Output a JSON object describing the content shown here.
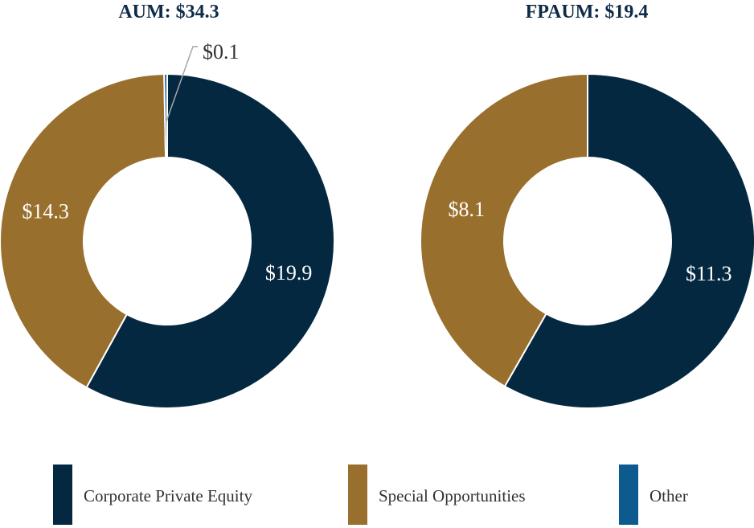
{
  "colors": {
    "corporate_private_equity": "#052841",
    "special_opportunities": "#996f2d",
    "other": "#0d5a8e",
    "title": "#0e2b47"
  },
  "chart_data": [
    {
      "type": "pie",
      "variant": "donut",
      "title": "AUM: $34.3",
      "categories": [
        "Corporate Private Equity",
        "Special Opportunities",
        "Other"
      ],
      "values": [
        19.9,
        14.3,
        0.1
      ],
      "labels": [
        "$19.9",
        "$14.3",
        "$0.1"
      ]
    },
    {
      "type": "pie",
      "variant": "donut",
      "title": "FPAUM: $19.4",
      "categories": [
        "Corporate Private Equity",
        "Special Opportunities",
        "Other"
      ],
      "values": [
        11.3,
        8.1,
        0
      ],
      "labels": [
        "$11.3",
        "$8.1",
        ""
      ]
    }
  ],
  "legend": {
    "items": [
      {
        "label": "Corporate Private Equity",
        "color": "#052841"
      },
      {
        "label": "Special Opportunities",
        "color": "#996f2d"
      },
      {
        "label": "Other",
        "color": "#0d5a8e"
      }
    ]
  }
}
